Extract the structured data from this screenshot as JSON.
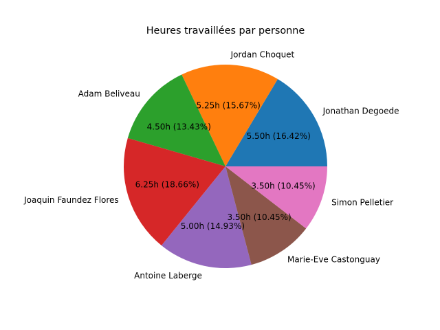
{
  "chart_data": {
    "type": "pie",
    "title": "Heures travaillées par personne",
    "categories": [
      "Jonathan Degoede",
      "Jordan Choquet",
      "Adam Beliveau",
      "Joaquin Faundez Flores",
      "Antoine Laberge",
      "Marie-Eve Castonguay",
      "Simon Pelletier"
    ],
    "values": [
      5.5,
      5.25,
      4.5,
      6.25,
      5.0,
      3.5,
      3.5
    ],
    "slice_labels": [
      "5.50h (16.42%)",
      "5.25h (15.67%)",
      "4.50h (13.43%)",
      "6.25h (18.66%)",
      "5.00h (14.93%)",
      "3.50h (10.45%)",
      "3.50h (10.45%)"
    ],
    "colors": [
      "#1f77b4",
      "#ff7f0e",
      "#2ca02c",
      "#d62728",
      "#9467bd",
      "#8c564b",
      "#e377c2"
    ],
    "start_angle_deg": 0,
    "direction": "counterclockwise"
  }
}
